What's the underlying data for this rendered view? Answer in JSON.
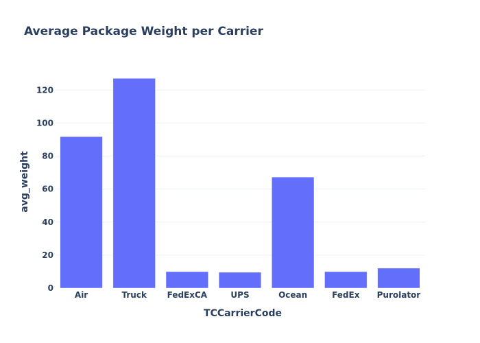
{
  "chart_data": {
    "type": "bar",
    "title": "Average Package Weight per Carrier",
    "xlabel": "TCCarrierCode",
    "ylabel": "avg_weight",
    "categories": [
      "Air",
      "Truck",
      "FedExCA",
      "UPS",
      "Ocean",
      "FedEx",
      "Purolator"
    ],
    "values": [
      91.8,
      127.1,
      10.0,
      9.6,
      67.3,
      10.0,
      12.1
    ],
    "ylim": [
      0,
      133
    ],
    "yticks": [
      0,
      20,
      40,
      60,
      80,
      100,
      120
    ],
    "grid": true,
    "bar_color": "#636efa"
  }
}
